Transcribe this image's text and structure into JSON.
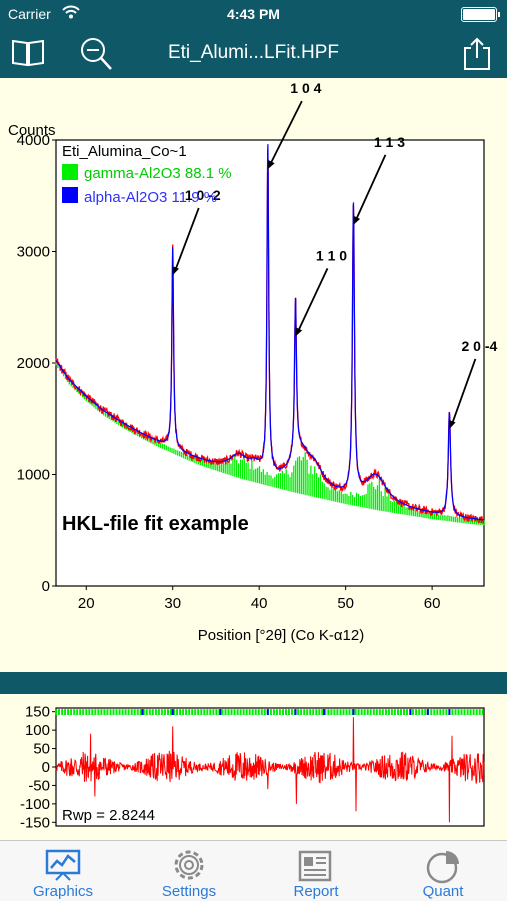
{
  "status_bar": {
    "carrier": "Carrier",
    "time": "4:43 PM"
  },
  "nav": {
    "title": "Eti_Alumi...LFit.HPF"
  },
  "chart_data": [
    {
      "type": "line",
      "title": "Eti_Alumina_Co~1",
      "annotation": "HKL-file fit example",
      "xlabel": "Position [°2θ] (Co K-α12)",
      "ylabel": "Counts",
      "xlim": [
        16.5,
        66
      ],
      "ylim": [
        0,
        4000
      ],
      "x_ticks": [
        "20",
        "30",
        "40",
        "50",
        "60"
      ],
      "y_ticks": [
        "0",
        "1000",
        "2000",
        "3000",
        "4000"
      ],
      "legend_placement": "top-left",
      "legend": [
        {
          "name": "gamma-Al2O3 88.1 %",
          "color": "#00ee00"
        },
        {
          "name": "alpha-Al2O3 11.9 %",
          "color": "#0000ff"
        }
      ],
      "peak_labels": [
        {
          "label": "1 0 -2",
          "x": 30.0,
          "y": 2950
        },
        {
          "label": "1 0 4",
          "x": 41.0,
          "y": 3900
        },
        {
          "label": "1 1 0",
          "x": 44.2,
          "y": 2400
        },
        {
          "label": "1 1 3",
          "x": 50.9,
          "y": 3400
        },
        {
          "label": "2 0 -4",
          "x": 62.0,
          "y": 1570
        }
      ],
      "background": [
        [
          16.5,
          2020
        ],
        [
          18,
          1850
        ],
        [
          20,
          1700
        ],
        [
          22,
          1570
        ],
        [
          24,
          1470
        ],
        [
          26,
          1380
        ],
        [
          28,
          1300
        ],
        [
          30,
          1230
        ],
        [
          32,
          1160
        ],
        [
          34,
          1100
        ],
        [
          36,
          1050
        ],
        [
          38,
          1000
        ],
        [
          40,
          960
        ],
        [
          42,
          920
        ],
        [
          44,
          880
        ],
        [
          46,
          845
        ],
        [
          48,
          810
        ],
        [
          50,
          775
        ],
        [
          52,
          745
        ],
        [
          54,
          715
        ],
        [
          56,
          690
        ],
        [
          58,
          665
        ],
        [
          60,
          640
        ],
        [
          62,
          620
        ],
        [
          64,
          600
        ],
        [
          66,
          585
        ]
      ],
      "series": [
        {
          "name": "gamma-Al2O3 88.1 %",
          "color": "#00ee00",
          "peaks": [
            {
              "x": 37.6,
              "height": 140,
              "width": 1.2
            },
            {
              "x": 39.5,
              "height": 90,
              "width": 1.0
            },
            {
              "x": 44.8,
              "height": 320,
              "width": 1.4
            },
            {
              "x": 46.5,
              "height": 140,
              "width": 1.1
            },
            {
              "x": 53.5,
              "height": 260,
              "width": 1.5
            }
          ]
        },
        {
          "name": "alpha-Al2O3 11.9 %",
          "color": "#0000ff",
          "peaks": [
            {
              "x": 30.0,
              "height": 1800,
              "width": 0.12
            },
            {
              "x": 41.0,
              "height": 2950,
              "width": 0.12
            },
            {
              "x": 44.2,
              "height": 1400,
              "width": 0.13
            },
            {
              "x": 50.9,
              "height": 2600,
              "width": 0.14
            },
            {
              "x": 62.0,
              "height": 930,
              "width": 0.16
            }
          ]
        }
      ]
    },
    {
      "type": "line",
      "annotation": "Rwp = 2.8244",
      "xlim": [
        16.5,
        66
      ],
      "ylim": [
        -160,
        160
      ],
      "y_ticks": [
        "150",
        "100",
        "50",
        "0",
        "-50",
        "-100",
        "-150"
      ],
      "series": [
        {
          "name": "difference",
          "color": "#ff0000",
          "amplitude": 45,
          "spikes": [
            [
              20.5,
              90
            ],
            [
              21,
              -80
            ],
            [
              30,
              110
            ],
            [
              41,
              -60
            ],
            [
              44.3,
              -100
            ],
            [
              50.9,
              135
            ],
            [
              51.2,
              -120
            ],
            [
              62,
              -150
            ],
            [
              62.3,
              85
            ]
          ]
        }
      ],
      "tick_rows": [
        {
          "color": "#00ee00",
          "y": 150
        },
        {
          "color": "#0000ff",
          "y": 150
        }
      ]
    }
  ],
  "tabs": [
    {
      "label": "Graphics",
      "icon": "graphics-icon",
      "selected": true
    },
    {
      "label": "Settings",
      "icon": "settings-icon",
      "selected": false
    },
    {
      "label": "Report",
      "icon": "report-icon",
      "selected": false
    },
    {
      "label": "Quant",
      "icon": "quant-icon",
      "selected": false
    }
  ]
}
